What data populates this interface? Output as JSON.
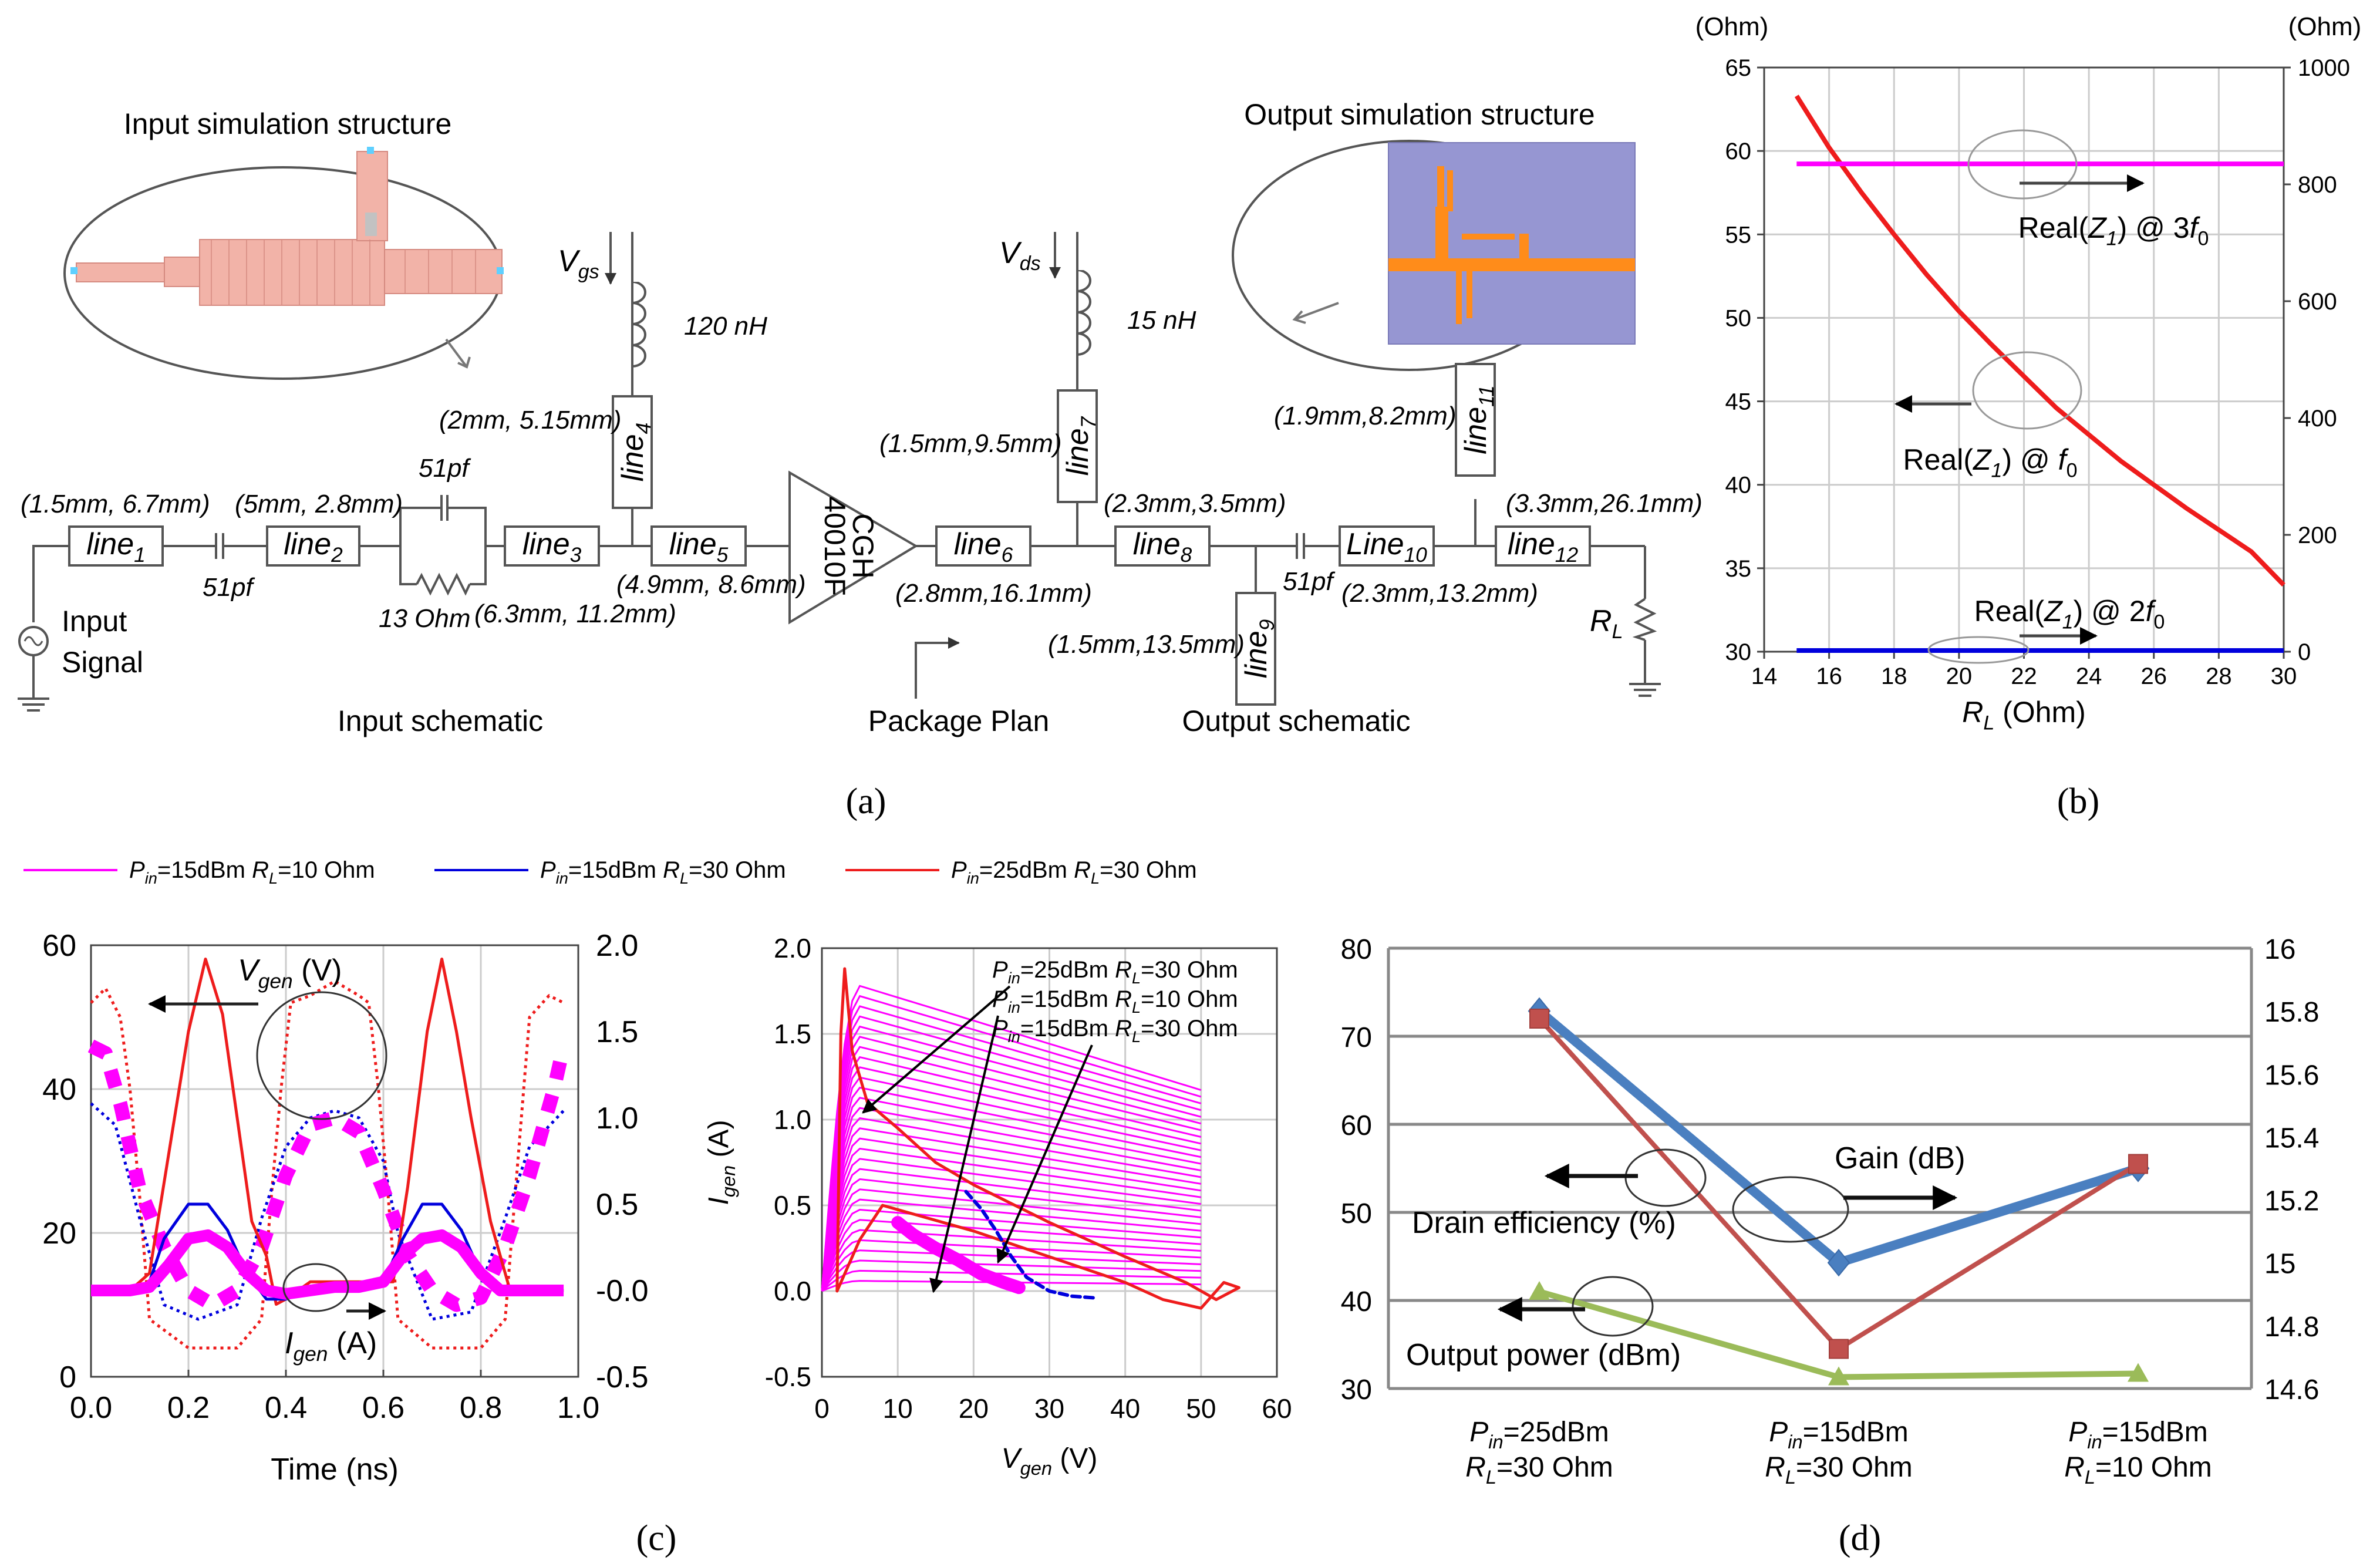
{
  "panel_labels": {
    "a": "(a)",
    "b": "(b)",
    "c": "(c)",
    "d": "(d)"
  },
  "schematic": {
    "input_title": "Input simulation structure",
    "output_title": "Output simulation structure",
    "input_schematic": "Input schematic",
    "output_schematic": "Output schematic",
    "package_plan": "Package Plan",
    "input_signal_1": "Input",
    "input_signal_2": "Signal",
    "vgs": "V",
    "vgs_sub": "gs",
    "vds": "V",
    "vds_sub": "ds",
    "l_gate": "120 nH",
    "l_drain": "15 nH",
    "c_51pf_1": "51pf",
    "c_51pf_2": "51pf",
    "c_51pf_3": "51pf",
    "r_13": "13 Ohm",
    "rl": "R",
    "rl_sub": "L",
    "device_1": "CGH",
    "device_2": "40010F",
    "lines": [
      {
        "name": "line",
        "sub": "1",
        "dim": "(1.5mm, 6.7mm)"
      },
      {
        "name": "line",
        "sub": "2",
        "dim": "(5mm, 2.8mm)"
      },
      {
        "name": "line",
        "sub": "3",
        "dim": "(6.3mm, 11.2mm)"
      },
      {
        "name": "line",
        "sub": "4",
        "dim": "(2mm, 5.15mm)"
      },
      {
        "name": "line",
        "sub": "5",
        "dim": "(4.9mm, 8.6mm)"
      },
      {
        "name": "line",
        "sub": "6",
        "dim": "(2.8mm,16.1mm)"
      },
      {
        "name": "line",
        "sub": "7",
        "dim": "(1.5mm,9.5mm)"
      },
      {
        "name": "line",
        "sub": "8",
        "dim": "(2.3mm,3.5mm)"
      },
      {
        "name": "line",
        "sub": "9",
        "dim": "(1.5mm,13.5mm)"
      },
      {
        "name": "Line",
        "sub": "10",
        "dim": "(2.3mm,13.2mm)"
      },
      {
        "name": "line",
        "sub": "11",
        "dim": "(1.9mm,8.2mm)"
      },
      {
        "name": "line",
        "sub": "12",
        "dim": "(3.3mm,26.1mm)"
      }
    ]
  },
  "legend_c": [
    {
      "label": "=15dBm ",
      "rl": "=10 Ohm",
      "color": "#ff00ff"
    },
    {
      "label": "=15dBm ",
      "rl": "=30 Ohm",
      "color": "#0000dd"
    },
    {
      "label": "=25dBm ",
      "rl": "=30 Ohm",
      "color": "#ee1c1c"
    }
  ],
  "chart_data": [
    {
      "panel": "b",
      "type": "line",
      "title": "",
      "xlabel": "R",
      "xlabel_sub": "L",
      "xlabel_unit": " (Ohm)",
      "ylabel_left": "(Ohm)",
      "ylabel_right": "(Ohm)",
      "xlim": [
        14,
        30
      ],
      "ylim_left": [
        30,
        65
      ],
      "ylim_right": [
        0,
        1000
      ],
      "x_ticks": [
        14,
        16,
        18,
        20,
        22,
        24,
        26,
        28,
        30
      ],
      "y_left_ticks": [
        30,
        35,
        40,
        45,
        50,
        55,
        60,
        65
      ],
      "y_right_ticks": [
        0,
        200,
        400,
        600,
        800,
        1000
      ],
      "series": [
        {
          "name": "Real(Z1) @ f0",
          "axis": "left",
          "color": "#ee1c1c",
          "x": [
            15,
            16,
            17,
            18,
            19,
            20,
            21,
            22,
            23,
            24,
            25,
            26,
            27,
            28,
            29,
            30
          ],
          "y": [
            63.3,
            60.2,
            57.5,
            55.0,
            52.6,
            50.4,
            48.4,
            46.5,
            44.6,
            43.0,
            41.4,
            40.0,
            38.6,
            37.3,
            36.0,
            34.0
          ]
        },
        {
          "name": "Real(Z1) @ 2f0",
          "axis": "right",
          "color": "#0000dd",
          "x": [
            15,
            30
          ],
          "y": [
            2,
            2
          ]
        },
        {
          "name": "Real(Z1) @ 3f0",
          "axis": "right",
          "color": "#ff00ff",
          "x": [
            15,
            30
          ],
          "y": [
            835,
            835
          ]
        }
      ],
      "annotations": {
        "f0": {
          "text": "Real(",
          "z": "Z",
          "zsub": "1",
          "mid": ") @ ",
          "f": "f",
          "fsub": "0"
        },
        "f2": {
          "text": "Real(",
          "z": "Z",
          "zsub": "1",
          "mid": ") @ 2",
          "f": "f",
          "fsub": "0"
        },
        "f3": {
          "text": "Real(",
          "z": "Z",
          "zsub": "1",
          "mid": ") @ 3",
          "f": "f",
          "fsub": "0"
        }
      }
    },
    {
      "panel": "c-left",
      "type": "line",
      "xlabel": "Time (ns)",
      "xlim": [
        0,
        1
      ],
      "ylim_left": [
        0,
        60
      ],
      "ylim_right": [
        -0.5,
        2.0
      ],
      "x_ticks": [
        "0.0",
        "0.2",
        "0.4",
        "0.6",
        "0.8",
        "1.0"
      ],
      "y_left_ticks": [
        "0",
        "20",
        "40",
        "60"
      ],
      "y_right_ticks": [
        "-0.5",
        "-0.0",
        "0.5",
        "1.0",
        "1.5",
        "2.0"
      ],
      "annotations": {
        "vgen": "V",
        "vgen_sub": "gen",
        "vgen_unit": " (V)",
        "igen": "I",
        "igen_sub": "gen",
        "igen_unit": " (A)"
      },
      "series": [
        {
          "name": "Vgen Pin=25dBm RL=30",
          "style": "dot",
          "color": "#ee1c1c",
          "axis": "left",
          "x": [
            0,
            0.03,
            0.06,
            0.08,
            0.1,
            0.12,
            0.2,
            0.3,
            0.35,
            0.37,
            0.39,
            0.41,
            0.45,
            0.5,
            0.55,
            0.57,
            0.59,
            0.61,
            0.63,
            0.7,
            0.8,
            0.85,
            0.87,
            0.9,
            0.94,
            0.97
          ],
          "y": [
            52,
            54,
            50,
            40,
            25,
            8,
            4,
            4,
            8,
            25,
            40,
            52,
            53,
            55,
            53,
            52,
            40,
            25,
            8,
            4,
            4,
            8,
            25,
            50,
            53,
            52
          ]
        },
        {
          "name": "Vgen Pin=15dBm RL=30",
          "style": "dot",
          "color": "#0000dd",
          "axis": "left",
          "x": [
            0,
            0.05,
            0.1,
            0.15,
            0.22,
            0.3,
            0.35,
            0.4,
            0.45,
            0.5,
            0.55,
            0.6,
            0.63,
            0.7,
            0.78,
            0.85,
            0.9,
            0.97
          ],
          "y": [
            38,
            35,
            22,
            10,
            8,
            10,
            22,
            32,
            36,
            37,
            36,
            30,
            20,
            8,
            9,
            22,
            32,
            37
          ]
        },
        {
          "name": "Vgen Pin=15dBm RL=10",
          "style": "dash",
          "color": "#ff00ff",
          "axis": "left",
          "x": [
            0,
            0.03,
            0.06,
            0.1,
            0.15,
            0.2,
            0.25,
            0.3,
            0.35,
            0.4,
            0.45,
            0.5,
            0.55,
            0.6,
            0.65,
            0.7,
            0.75,
            0.8,
            0.85,
            0.9,
            0.95,
            0.97
          ],
          "y": [
            46,
            45,
            38,
            26,
            18,
            12,
            10,
            12,
            18,
            28,
            35,
            36,
            34,
            26,
            17,
            12,
            10,
            11,
            18,
            28,
            40,
            46
          ]
        },
        {
          "name": "Igen Pin=25dBm RL=30",
          "style": "solid",
          "color": "#ee1c1c",
          "axis": "right",
          "x": [
            0,
            0.08,
            0.12,
            0.16,
            0.2,
            0.235,
            0.27,
            0.3,
            0.33,
            0.36,
            0.38,
            0.4,
            0.45,
            0.5,
            0.55,
            0.6,
            0.62,
            0.65,
            0.69,
            0.72,
            0.75,
            0.78,
            0.82,
            0.86,
            0.9,
            0.97
          ],
          "y": [
            0,
            0,
            0.1,
            0.8,
            1.5,
            1.92,
            1.6,
            1.0,
            0.4,
            0.2,
            -0.08,
            -0.05,
            0.05,
            0.05,
            0.05,
            0.05,
            0.05,
            0.6,
            1.5,
            1.92,
            1.5,
            1.0,
            0.4,
            0.0,
            0.0,
            0.0
          ]
        },
        {
          "name": "Igen Pin=15dBm RL=30",
          "style": "solid",
          "color": "#0000dd",
          "axis": "right",
          "x": [
            0,
            0.08,
            0.12,
            0.15,
            0.2,
            0.24,
            0.28,
            0.32,
            0.36,
            0.4,
            0.45,
            0.5,
            0.55,
            0.6,
            0.64,
            0.68,
            0.72,
            0.76,
            0.8,
            0.84,
            0.9,
            0.97
          ],
          "y": [
            0,
            0,
            0.05,
            0.3,
            0.5,
            0.5,
            0.35,
            0.1,
            -0.05,
            -0.05,
            0,
            0.02,
            0.02,
            0.05,
            0.3,
            0.5,
            0.5,
            0.35,
            0.1,
            0,
            0,
            0
          ]
        },
        {
          "name": "Igen Pin=15dBm RL=10",
          "style": "thick",
          "color": "#ff00ff",
          "axis": "right",
          "x": [
            0,
            0.08,
            0.12,
            0.16,
            0.2,
            0.24,
            0.28,
            0.32,
            0.36,
            0.4,
            0.45,
            0.5,
            0.55,
            0.6,
            0.64,
            0.68,
            0.72,
            0.76,
            0.8,
            0.84,
            0.9,
            0.97
          ],
          "y": [
            0,
            0,
            0.02,
            0.15,
            0.3,
            0.32,
            0.25,
            0.1,
            0,
            -0.02,
            0,
            0.02,
            0.02,
            0.05,
            0.2,
            0.3,
            0.32,
            0.25,
            0.1,
            0,
            0,
            0
          ]
        }
      ]
    },
    {
      "panel": "c-right",
      "type": "line",
      "xlabel": "V",
      "xlabel_sub": "gen",
      "xlabel_unit": " (V)",
      "ylabel": "I",
      "ylabel_sub": "gen",
      "ylabel_unit": " (A)",
      "xlim": [
        0,
        60
      ],
      "ylim": [
        -0.5,
        2.0
      ],
      "x_ticks": [
        "0",
        "10",
        "20",
        "30",
        "40",
        "50",
        "60"
      ],
      "y_ticks": [
        "-0.5",
        "0.0",
        "0.5",
        "1.0",
        "1.5",
        "2.0"
      ],
      "annotations": [
        {
          "p": "P",
          "psub": "in",
          "val": "=25dBm ",
          "r": "R",
          "rsub": "L",
          "rval": "=30 Ohm"
        },
        {
          "p": "P",
          "psub": "in",
          "val": "=15dBm ",
          "r": "R",
          "rsub": "L",
          "rval": "=10 Ohm"
        },
        {
          "p": "P",
          "psub": "in",
          "val": "=15dBm ",
          "r": "R",
          "rsub": "L",
          "rval": "=30 Ohm"
        }
      ],
      "iv_family": {
        "count": 30,
        "v_knee": 5,
        "i_max": 1.78,
        "slope": -0.0135
      },
      "series": [
        {
          "name": "Pin=25dBm RL=30",
          "color": "#ee1c1c",
          "x": [
            2,
            2.5,
            3,
            4,
            6,
            10,
            15,
            20,
            30,
            40,
            48,
            52,
            55,
            53,
            50,
            45,
            40,
            30,
            20,
            12,
            8,
            5,
            3,
            2
          ],
          "y": [
            0.0,
            1.5,
            1.88,
            1.4,
            1.1,
            0.95,
            0.75,
            0.62,
            0.4,
            0.2,
            0.05,
            -0.05,
            0.02,
            0.05,
            -0.1,
            -0.05,
            0.05,
            0.2,
            0.35,
            0.45,
            0.5,
            0.3,
            0.1,
            0.0
          ]
        },
        {
          "name": "Pin=15dBm RL=30",
          "color": "#0000dd",
          "x": [
            19,
            21,
            23,
            25,
            27,
            30,
            33,
            36
          ],
          "y": [
            0.58,
            0.48,
            0.35,
            0.2,
            0.08,
            0.0,
            -0.03,
            -0.04
          ]
        },
        {
          "name": "Pin=15dBm RL=10",
          "color": "#ff00ff",
          "x": [
            10,
            12,
            15,
            18,
            21,
            24,
            26
          ],
          "y": [
            0.4,
            0.33,
            0.25,
            0.18,
            0.1,
            0.05,
            0.02
          ]
        }
      ]
    },
    {
      "panel": "d",
      "type": "line",
      "categories": [
        {
          "p": "P",
          "psub": "in",
          "val": "=25dBm",
          "r": "R",
          "rsub": "L",
          "rval": "=30 Ohm"
        },
        {
          "p": "P",
          "psub": "in",
          "val": "=15dBm",
          "r": "R",
          "rsub": "L",
          "rval": "=30 Ohm"
        },
        {
          "p": "P",
          "psub": "in",
          "val": "=15dBm",
          "r": "R",
          "rsub": "L",
          "rval": "=10 Ohm"
        }
      ],
      "ylim_left": [
        30,
        80
      ],
      "ylim_right": [
        14.6,
        16
      ],
      "y_left_ticks": [
        "30",
        "40",
        "50",
        "60",
        "70",
        "80"
      ],
      "y_right_ticks": [
        "14.6",
        "14.8",
        "15",
        "15.2",
        "15.4",
        "15.6",
        "15.8",
        "16"
      ],
      "labels": {
        "gain": "Gain (dB)",
        "drain": "Drain efficiency (%)",
        "pout": "Output power (dBm)"
      },
      "series": [
        {
          "name": "Gain (dB)",
          "axis": "right",
          "color": "#4a7fc0",
          "marker": "diamond",
          "values": [
            15.8,
            15.0,
            15.3
          ]
        },
        {
          "name": "Drain efficiency (%)",
          "axis": "left",
          "color": "#c0504d",
          "marker": "square",
          "values": [
            72,
            34.5,
            55.5
          ]
        },
        {
          "name": "Output power (dBm)",
          "axis": "left",
          "color": "#9bbb59",
          "marker": "triangle",
          "values": [
            41,
            31.3,
            31.7
          ]
        }
      ]
    }
  ]
}
